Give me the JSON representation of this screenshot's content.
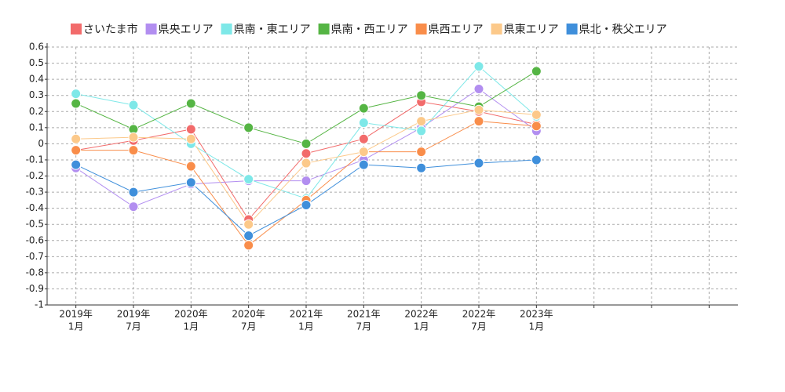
{
  "chart_data": {
    "type": "line",
    "categories": [
      [
        "2019年",
        "1月"
      ],
      [
        "2019年",
        "7月"
      ],
      [
        "2020年",
        "1月"
      ],
      [
        "2020年",
        "7月"
      ],
      [
        "2021年",
        "1月"
      ],
      [
        "2021年",
        "7月"
      ],
      [
        "2022年",
        "1月"
      ],
      [
        "2022年",
        "7月"
      ],
      [
        "2023年",
        "1月"
      ],
      null,
      null,
      null
    ],
    "series": [
      {
        "name": "さいたま市",
        "color": "#f26b6b",
        "values": [
          -0.04,
          0.02,
          0.09,
          -0.47,
          -0.06,
          0.03,
          0.26,
          0.2,
          0.12,
          null,
          null,
          null
        ]
      },
      {
        "name": "県央エリア",
        "color": "#b28ef0",
        "values": [
          -0.15,
          -0.39,
          -0.25,
          -0.23,
          -0.23,
          -0.1,
          0.1,
          0.34,
          0.08,
          null,
          null,
          null
        ]
      },
      {
        "name": "県南・東エリア",
        "color": "#7ee8e8",
        "values": [
          0.31,
          0.24,
          0.0,
          -0.22,
          -0.34,
          0.13,
          0.08,
          0.48,
          0.17,
          null,
          null,
          null
        ]
      },
      {
        "name": "県南・西エリア",
        "color": "#55b544",
        "values": [
          0.25,
          0.09,
          0.25,
          0.1,
          0.0,
          0.22,
          0.3,
          0.23,
          0.45,
          null,
          null,
          null
        ]
      },
      {
        "name": "県西エリア",
        "color": "#f98d4a",
        "values": [
          -0.04,
          -0.04,
          -0.14,
          -0.63,
          -0.35,
          -0.05,
          -0.05,
          0.14,
          0.11,
          null,
          null,
          null
        ]
      },
      {
        "name": "県東エリア",
        "color": "#fcc98a",
        "values": [
          0.03,
          0.04,
          0.03,
          -0.5,
          -0.12,
          -0.05,
          0.14,
          0.21,
          0.18,
          null,
          null,
          null
        ]
      },
      {
        "name": "県北・秩父エリア",
        "color": "#3f8fdb",
        "values": [
          -0.13,
          -0.3,
          -0.24,
          -0.57,
          -0.38,
          -0.13,
          -0.15,
          -0.12,
          -0.1,
          null,
          null,
          null
        ]
      }
    ],
    "ylim": [
      -1,
      0.6
    ],
    "yticks": [
      -1,
      -0.9,
      -0.8,
      -0.7,
      -0.6,
      -0.5,
      -0.4,
      -0.3,
      -0.2,
      -0.1,
      0,
      0.1,
      0.2,
      0.3,
      0.4,
      0.5,
      0.6
    ],
    "grid": true,
    "legend": "top"
  }
}
